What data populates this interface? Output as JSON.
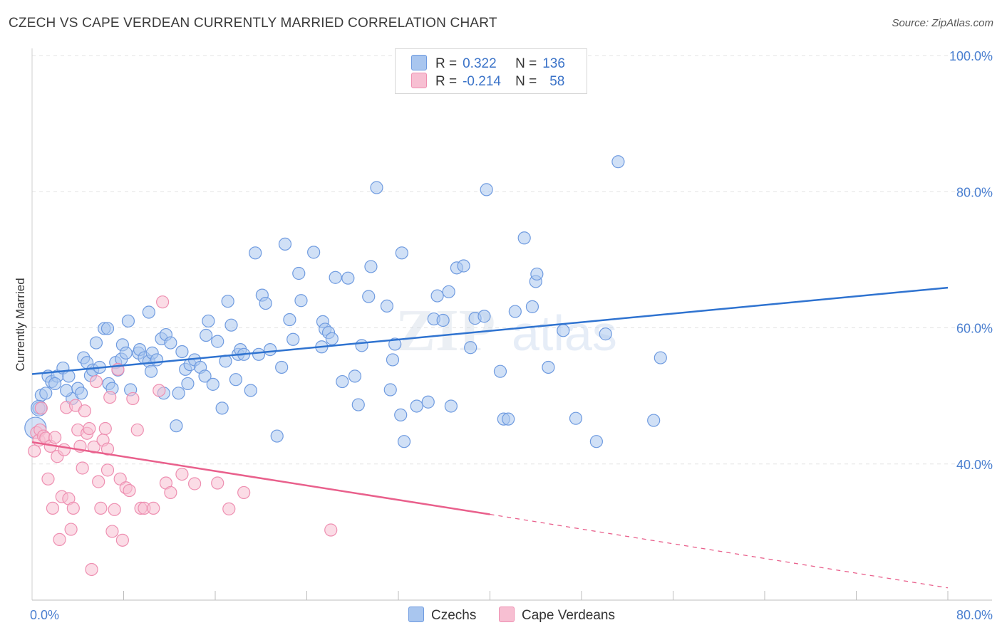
{
  "header": {
    "title": "CZECH VS CAPE VERDEAN CURRENTLY MARRIED CORRELATION CHART",
    "source": "Source: ZipAtlas.com"
  },
  "legend": {
    "rows": [
      {
        "r_label": "R =",
        "r_value": "0.322",
        "n_label": "N =",
        "n_value": "136",
        "color": "#a9c6ef",
        "border": "#6f9be0"
      },
      {
        "r_label": "R =",
        "r_value": "-0.214",
        "n_label": "N =",
        "n_value": "58",
        "color": "#f7bfd2",
        "border": "#ee8fb1"
      }
    ]
  },
  "bottom_legend": [
    {
      "label": "Czechs",
      "color": "#a9c6ef",
      "border": "#6f9be0"
    },
    {
      "label": "Cape Verdeans",
      "color": "#f7bfd2",
      "border": "#ee8fb1"
    }
  ],
  "chart_data": {
    "type": "scatter",
    "title": "CZECH VS CAPE VERDEAN CURRENTLY MARRIED CORRELATION CHART",
    "ylabel": "Currently Married",
    "xlabel": "",
    "xlim": [
      0,
      80
    ],
    "ylim": [
      20,
      100
    ],
    "x_tick_labels": [
      {
        "value": 0,
        "label": "0.0%"
      },
      {
        "value": 80,
        "label": "80.0%"
      }
    ],
    "y_tick_labels": [
      {
        "value": 40,
        "label": "40.0%"
      },
      {
        "value": 60,
        "label": "60.0%"
      },
      {
        "value": 80,
        "label": "80.0%"
      },
      {
        "value": 100,
        "label": "100.0%"
      }
    ],
    "grid": true,
    "legend_position": "top-center",
    "series": [
      {
        "name": "Czechs",
        "color": "#6f9be0",
        "fill": "#a9c6ef",
        "trend": {
          "x": [
            0,
            80
          ],
          "y": [
            53.2,
            65.9
          ],
          "style": "solid",
          "color": "#2f73d0"
        },
        "points": [
          [
            0.6,
            48.2
          ],
          [
            0.8,
            50.1
          ],
          [
            1.2,
            50.4
          ],
          [
            1.4,
            52.9
          ],
          [
            1.7,
            52.1
          ],
          [
            2.2,
            52.9
          ],
          [
            2.7,
            54.1
          ],
          [
            2.0,
            51.8
          ],
          [
            3.2,
            52.9
          ],
          [
            3.5,
            49.6
          ],
          [
            3.0,
            50.8
          ],
          [
            4.0,
            51.1
          ],
          [
            4.3,
            50.4
          ],
          [
            4.5,
            55.6
          ],
          [
            4.8,
            54.9
          ],
          [
            5.1,
            53.0
          ],
          [
            5.3,
            53.8
          ],
          [
            5.6,
            57.8
          ],
          [
            5.9,
            54.2
          ],
          [
            6.3,
            59.9
          ],
          [
            6.6,
            59.9
          ],
          [
            6.7,
            51.8
          ],
          [
            7.0,
            51.1
          ],
          [
            7.3,
            54.9
          ],
          [
            7.5,
            53.8
          ],
          [
            7.8,
            55.4
          ],
          [
            7.9,
            57.5
          ],
          [
            8.2,
            56.3
          ],
          [
            8.4,
            61.0
          ],
          [
            8.6,
            50.9
          ],
          [
            9.3,
            56.3
          ],
          [
            9.4,
            56.8
          ],
          [
            9.8,
            55.6
          ],
          [
            10.2,
            55.1
          ],
          [
            10.2,
            62.3
          ],
          [
            10.4,
            53.6
          ],
          [
            10.5,
            56.3
          ],
          [
            10.9,
            55.3
          ],
          [
            11.3,
            58.4
          ],
          [
            11.5,
            50.4
          ],
          [
            11.7,
            59.0
          ],
          [
            12.1,
            57.8
          ],
          [
            12.6,
            45.6
          ],
          [
            12.8,
            50.4
          ],
          [
            13.1,
            56.5
          ],
          [
            13.4,
            53.9
          ],
          [
            13.6,
            51.8
          ],
          [
            13.8,
            54.6
          ],
          [
            14.2,
            55.3
          ],
          [
            14.7,
            54.2
          ],
          [
            15.1,
            52.9
          ],
          [
            15.2,
            58.9
          ],
          [
            15.4,
            61.0
          ],
          [
            15.8,
            51.7
          ],
          [
            16.2,
            58.0
          ],
          [
            16.6,
            48.2
          ],
          [
            16.9,
            55.1
          ],
          [
            17.1,
            63.9
          ],
          [
            17.4,
            60.4
          ],
          [
            17.8,
            52.4
          ],
          [
            18.0,
            56.1
          ],
          [
            18.2,
            56.8
          ],
          [
            18.5,
            56.1
          ],
          [
            19.1,
            50.8
          ],
          [
            19.5,
            71.0
          ],
          [
            19.8,
            56.1
          ],
          [
            20.1,
            64.8
          ],
          [
            20.4,
            63.6
          ],
          [
            20.8,
            56.8
          ],
          [
            21.4,
            44.1
          ],
          [
            21.8,
            54.2
          ],
          [
            22.1,
            72.3
          ],
          [
            22.5,
            61.2
          ],
          [
            22.8,
            58.3
          ],
          [
            23.3,
            68.0
          ],
          [
            23.5,
            64.0
          ],
          [
            24.6,
            71.1
          ],
          [
            25.3,
            57.2
          ],
          [
            25.4,
            60.9
          ],
          [
            25.6,
            59.8
          ],
          [
            25.9,
            59.3
          ],
          [
            26.2,
            58.4
          ],
          [
            26.5,
            67.4
          ],
          [
            27.1,
            52.1
          ],
          [
            27.6,
            67.3
          ],
          [
            28.2,
            52.9
          ],
          [
            28.5,
            48.7
          ],
          [
            28.8,
            57.4
          ],
          [
            29.4,
            64.6
          ],
          [
            29.6,
            69.0
          ],
          [
            30.1,
            80.6
          ],
          [
            31.0,
            63.2
          ],
          [
            31.3,
            50.9
          ],
          [
            31.5,
            55.3
          ],
          [
            31.7,
            57.6
          ],
          [
            32.2,
            47.2
          ],
          [
            32.3,
            71.0
          ],
          [
            32.5,
            43.3
          ],
          [
            33.6,
            48.5
          ],
          [
            34.6,
            49.1
          ],
          [
            35.1,
            61.3
          ],
          [
            35.4,
            64.7
          ],
          [
            35.9,
            61.1
          ],
          [
            36.4,
            65.3
          ],
          [
            36.6,
            48.5
          ],
          [
            37.1,
            68.8
          ],
          [
            37.7,
            69.1
          ],
          [
            38.3,
            57.1
          ],
          [
            38.7,
            61.4
          ],
          [
            39.5,
            61.7
          ],
          [
            39.7,
            80.3
          ],
          [
            40.9,
            53.6
          ],
          [
            41.2,
            46.6
          ],
          [
            41.6,
            46.6
          ],
          [
            42.2,
            62.4
          ],
          [
            43.0,
            73.2
          ],
          [
            43.7,
            63.1
          ],
          [
            44.0,
            66.8
          ],
          [
            44.1,
            67.9
          ],
          [
            45.1,
            54.2
          ],
          [
            46.4,
            59.6
          ],
          [
            47.5,
            46.7
          ],
          [
            49.3,
            43.3
          ],
          [
            50.1,
            59.1
          ],
          [
            51.2,
            84.4
          ],
          [
            54.3,
            46.4
          ],
          [
            54.9,
            55.6
          ]
        ]
      },
      {
        "name": "Cape Verdeans",
        "color": "#ee8fb1",
        "fill": "#f7bfd2",
        "trend": {
          "x": [
            0,
            40,
            80
          ],
          "y": [
            43.2,
            32.6,
            21.8
          ],
          "solid_until": 40,
          "color": "#e9608c"
        },
        "points": [
          [
            0.2,
            41.9
          ],
          [
            0.4,
            44.6
          ],
          [
            0.6,
            43.5
          ],
          [
            0.7,
            45.0
          ],
          [
            0.8,
            48.2
          ],
          [
            1.0,
            44.1
          ],
          [
            1.2,
            43.8
          ],
          [
            1.4,
            37.8
          ],
          [
            1.6,
            42.6
          ],
          [
            1.8,
            33.5
          ],
          [
            2.0,
            43.9
          ],
          [
            2.2,
            41.1
          ],
          [
            2.4,
            28.9
          ],
          [
            2.6,
            35.2
          ],
          [
            2.8,
            42.1
          ],
          [
            3.0,
            48.3
          ],
          [
            3.2,
            34.9
          ],
          [
            3.4,
            30.4
          ],
          [
            3.6,
            33.5
          ],
          [
            3.8,
            48.6
          ],
          [
            4.0,
            45.0
          ],
          [
            4.2,
            42.6
          ],
          [
            4.4,
            39.4
          ],
          [
            4.6,
            47.8
          ],
          [
            4.8,
            44.5
          ],
          [
            5.0,
            45.2
          ],
          [
            5.2,
            24.5
          ],
          [
            5.4,
            42.5
          ],
          [
            5.6,
            52.1
          ],
          [
            5.8,
            37.4
          ],
          [
            6.0,
            33.5
          ],
          [
            6.2,
            43.5
          ],
          [
            6.4,
            45.2
          ],
          [
            6.6,
            39.1
          ],
          [
            6.8,
            49.8
          ],
          [
            7.0,
            30.1
          ],
          [
            7.2,
            33.3
          ],
          [
            7.5,
            53.9
          ],
          [
            7.7,
            37.8
          ],
          [
            7.9,
            28.8
          ],
          [
            8.2,
            36.5
          ],
          [
            8.5,
            36.1
          ],
          [
            8.8,
            49.6
          ],
          [
            9.2,
            45.0
          ],
          [
            9.5,
            33.5
          ],
          [
            9.8,
            33.5
          ],
          [
            10.6,
            33.5
          ],
          [
            11.1,
            50.8
          ],
          [
            11.4,
            63.8
          ],
          [
            11.7,
            37.2
          ],
          [
            12.1,
            35.8
          ],
          [
            13.1,
            38.5
          ],
          [
            14.2,
            37.1
          ],
          [
            16.2,
            37.2
          ],
          [
            17.2,
            33.4
          ],
          [
            18.5,
            35.8
          ],
          [
            26.1,
            30.3
          ],
          [
            6.6,
            42.2
          ]
        ]
      }
    ]
  }
}
